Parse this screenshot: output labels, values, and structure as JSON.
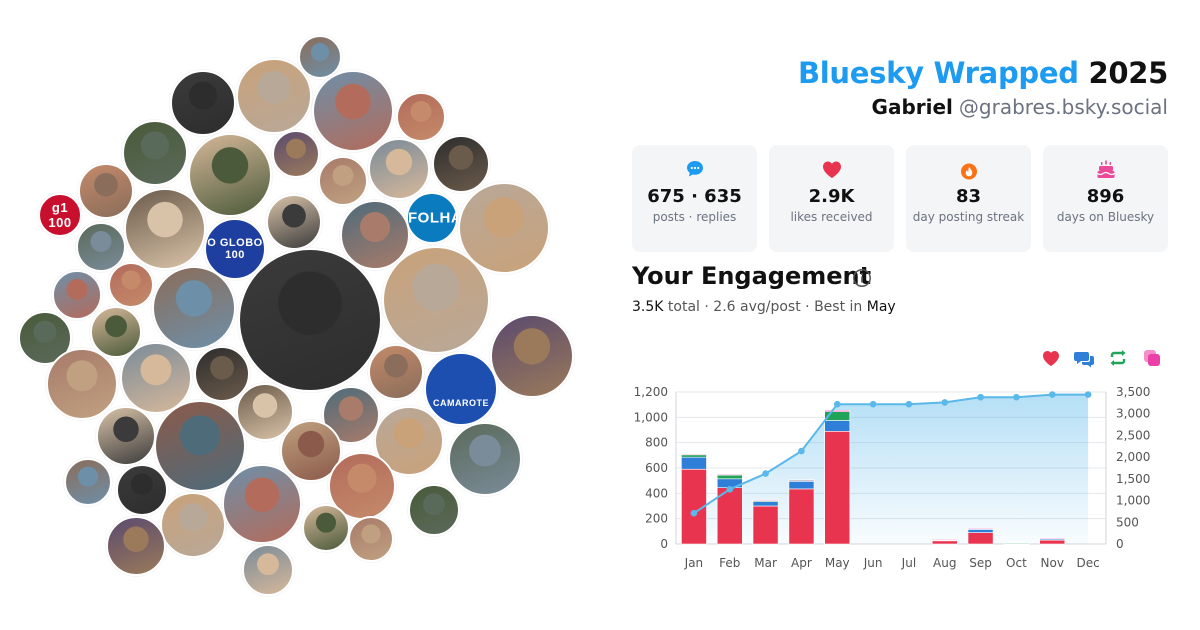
{
  "header": {
    "brand": "Bluesky Wrapped",
    "year": "2025",
    "user_name": "Gabriel",
    "handle": "@grabres.bsky.social"
  },
  "stats": [
    {
      "icon": "chat-bubble-icon",
      "value": "675 · 635",
      "label": "posts · replies",
      "color": "#1d9bf0"
    },
    {
      "icon": "heart-icon",
      "value": "2.9K",
      "label": "likes received",
      "color": "#e8344f"
    },
    {
      "icon": "flame-icon",
      "value": "83",
      "label": "day posting streak",
      "color": "#f97316"
    },
    {
      "icon": "cake-icon",
      "value": "896",
      "label": "days on Bluesky",
      "color": "#ec4899"
    }
  ],
  "engagement": {
    "title": "Your Engagement",
    "total": "3.5K",
    "total_label": "total",
    "avg": "2.6 avg/post",
    "best_label": "Best in",
    "best_month": "May"
  },
  "legend_buttons": [
    {
      "name": "likes",
      "icon": "heart-icon",
      "color": "#e8344f"
    },
    {
      "name": "replies",
      "icon": "reply-bubbles-icon",
      "color": "#2f7fd8"
    },
    {
      "name": "reposts",
      "icon": "repost-icon",
      "color": "#22a35a"
    },
    {
      "name": "quotes",
      "icon": "quote-icon",
      "color": "#ec3fa8"
    }
  ],
  "avatars": {
    "logos": [
      "g1 100",
      "O GLOBO 100",
      "FOLHA",
      "CAMAROTE"
    ],
    "colors": [
      "#8a6d5a",
      "#3b3b3b",
      "#c9a27a",
      "#6e8fa8",
      "#b36b5b",
      "#4a5a3a",
      "#d6b89a",
      "#5b4a6e",
      "#a87b6a",
      "#7a8b99",
      "#2d2d2d",
      "#c48a6a",
      "#9a7a5a",
      "#6b5b4b",
      "#d9c3a8",
      "#4e6b7a",
      "#8b5a4a",
      "#b8a898",
      "#5a6a5a",
      "#c0a080"
    ]
  },
  "chart_data": {
    "type": "bar",
    "categories": [
      "Jan",
      "Feb",
      "Mar",
      "Apr",
      "May",
      "Jun",
      "Jul",
      "Aug",
      "Sep",
      "Oct",
      "Nov",
      "Dec"
    ],
    "series": [
      {
        "name": "likes",
        "values": [
          590,
          445,
          300,
          435,
          890,
          0,
          0,
          25,
          90,
          5,
          30,
          0
        ],
        "color": "#e8344f",
        "axis": "left"
      },
      {
        "name": "replies",
        "values": [
          95,
          70,
          35,
          60,
          85,
          0,
          0,
          8,
          25,
          2,
          12,
          0
        ],
        "color": "#2f7fd8",
        "axis": "left"
      },
      {
        "name": "reposts",
        "values": [
          20,
          30,
          10,
          10,
          70,
          0,
          0,
          3,
          7,
          1,
          3,
          0
        ],
        "color": "#22a35a",
        "axis": "left"
      },
      {
        "name": "quotes",
        "values": [
          5,
          5,
          3,
          3,
          10,
          0,
          0,
          1,
          2,
          0,
          1,
          0
        ],
        "color": "#ec3fa8",
        "axis": "left"
      },
      {
        "name": "cumulative",
        "type": "area",
        "values": [
          710,
          1260,
          1620,
          2140,
          3220,
          3220,
          3220,
          3260,
          3380,
          3380,
          3440,
          3440
        ],
        "color": "#5ab8ea",
        "axis": "right"
      }
    ],
    "ylim": [
      0,
      1200
    ],
    "yticks": [
      "0",
      "200",
      "400",
      "600",
      "800",
      "1,000",
      "1,200"
    ],
    "y2lim": [
      0,
      3500
    ],
    "y2ticks": [
      "0",
      "500",
      "1,000",
      "1,500",
      "2,000",
      "2,500",
      "3,000",
      "3,500"
    ],
    "grid": true
  }
}
